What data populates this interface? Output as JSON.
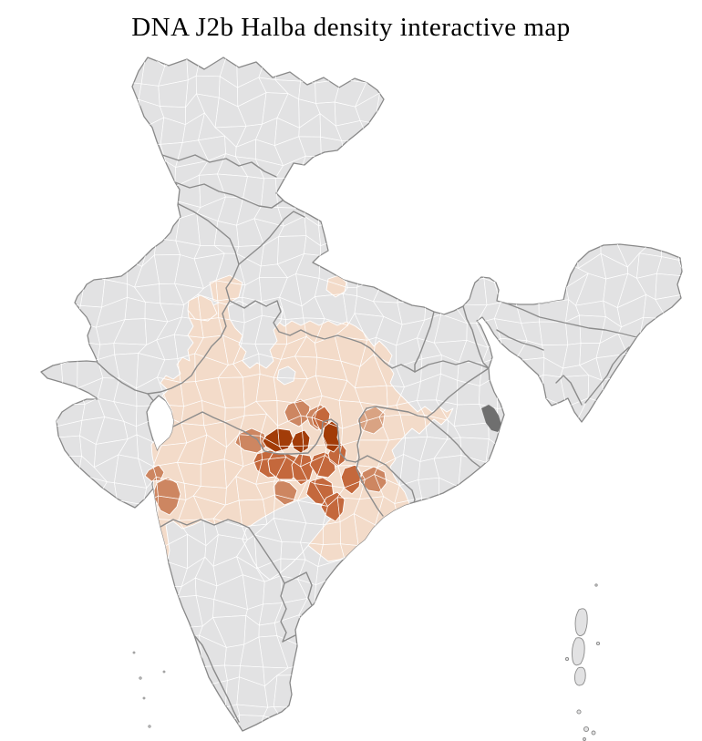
{
  "title": "DNA J2b Halba density interactive map",
  "map": {
    "description": "India district-level choropleth of J2b Halba density; dense cluster in central India",
    "colors": {
      "background": "#ffffff",
      "land": "#e2e2e3",
      "district_border": "#ffffff",
      "state_border": "#8c8c8c",
      "outline": "#898989",
      "delta_dark": "#6f6f6f",
      "title_text": "#000000"
    },
    "palette": {
      "0": "#e2e2e3",
      "1": "#f3dbc9",
      "2": "#d9a383",
      "3": "#cd8661",
      "4": "#c4683c",
      "5": "#a23c08"
    },
    "districts": [
      {
        "id": "p-main",
        "level": 1
      },
      {
        "id": "p-raj-a",
        "level": 1
      },
      {
        "id": "p-raj-b",
        "level": 1
      },
      {
        "id": "p-up",
        "level": 1
      },
      {
        "id": "h-up-wedge",
        "level": 0
      },
      {
        "id": "h-bhopal",
        "level": 0
      },
      {
        "id": "h-telangana",
        "level": 0
      },
      {
        "id": "t2",
        "level": 3
      },
      {
        "id": "t3",
        "level": 3
      },
      {
        "id": "t5",
        "level": 3
      },
      {
        "id": "t6",
        "level": 3
      },
      {
        "id": "t7",
        "level": 2
      },
      {
        "id": "t8",
        "level": 3
      },
      {
        "id": "c13",
        "level": 3
      },
      {
        "id": "c4",
        "level": 4
      },
      {
        "id": "c5",
        "level": 4
      },
      {
        "id": "c6",
        "level": 4
      },
      {
        "id": "c7",
        "level": 4
      },
      {
        "id": "c8",
        "level": 4
      },
      {
        "id": "c9",
        "level": 4
      },
      {
        "id": "c10",
        "level": 4
      },
      {
        "id": "c11",
        "level": 3
      },
      {
        "id": "c12",
        "level": 4
      },
      {
        "id": "c14",
        "level": 4
      },
      {
        "id": "c1",
        "level": 5
      },
      {
        "id": "c2",
        "level": 5
      },
      {
        "id": "c3",
        "level": 5
      }
    ]
  }
}
